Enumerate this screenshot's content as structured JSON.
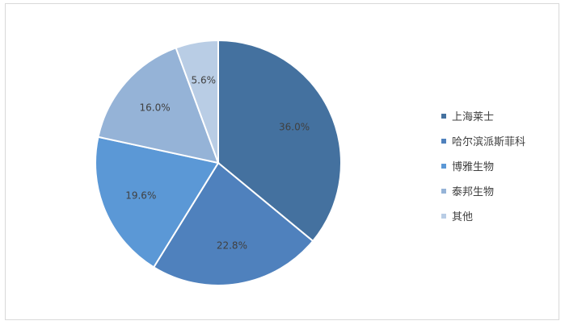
{
  "chart_data": {
    "type": "pie",
    "title": "",
    "categories": [
      "上海莱士",
      "哈尔滨派斯菲科",
      "博雅生物",
      "泰邦生物",
      "其他"
    ],
    "values": [
      36.0,
      22.8,
      19.6,
      16.0,
      5.6
    ],
    "value_labels": [
      "36.0%",
      "22.8%",
      "19.6%",
      "16.0%",
      "5.6%"
    ],
    "colors": [
      "#44719f",
      "#4f81bd",
      "#5b98d6",
      "#95b3d7",
      "#b9cde5"
    ],
    "legend_position": "right",
    "start_angle": "12 o'clock",
    "direction": "clockwise"
  }
}
